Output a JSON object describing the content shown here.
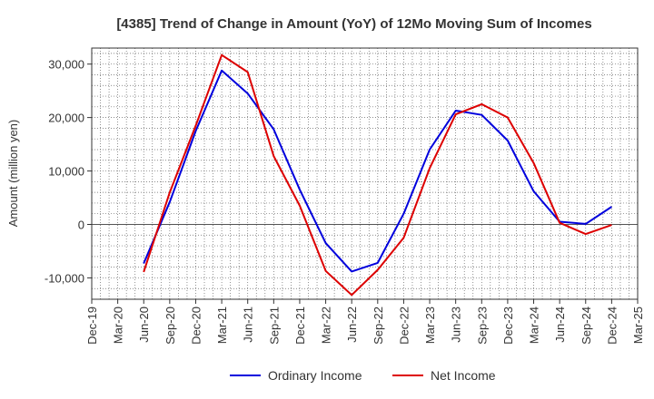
{
  "chart_data": {
    "type": "line",
    "title": "[4385]  Trend of Change in Amount (YoY) of 12Mo Moving Sum of Incomes",
    "xlabel": "",
    "ylabel": "Amount (million yen)",
    "ylim": [
      -14000,
      33000
    ],
    "yticks": [
      -10000,
      0,
      10000,
      20000,
      30000
    ],
    "ytick_labels": [
      "-10,000",
      "0",
      "10,000",
      "20,000",
      "30,000"
    ],
    "categories": [
      "Dec-19",
      "Mar-20",
      "Jun-20",
      "Sep-20",
      "Dec-20",
      "Mar-21",
      "Jun-21",
      "Sep-21",
      "Dec-21",
      "Mar-22",
      "Jun-22",
      "Sep-22",
      "Dec-22",
      "Mar-23",
      "Jun-23",
      "Sep-23",
      "Dec-23",
      "Mar-24",
      "Jun-24",
      "Sep-24",
      "Dec-24",
      "Mar-25"
    ],
    "grid": true,
    "legend_position": "bottom",
    "series": [
      {
        "name": "Ordinary Income",
        "color": "#0000dd",
        "values": [
          null,
          null,
          -7300,
          4200,
          17500,
          28800,
          24500,
          17800,
          6500,
          -3500,
          -8800,
          -7200,
          2000,
          14000,
          21300,
          20500,
          15700,
          6200,
          500,
          100,
          3300,
          null
        ]
      },
      {
        "name": "Net Income",
        "color": "#dd0000",
        "values": [
          null,
          null,
          -8900,
          6000,
          18500,
          31700,
          28500,
          12800,
          3500,
          -8700,
          -13200,
          -8500,
          -2500,
          10500,
          20600,
          22500,
          20000,
          11500,
          300,
          -1800,
          -100,
          null
        ]
      }
    ]
  }
}
